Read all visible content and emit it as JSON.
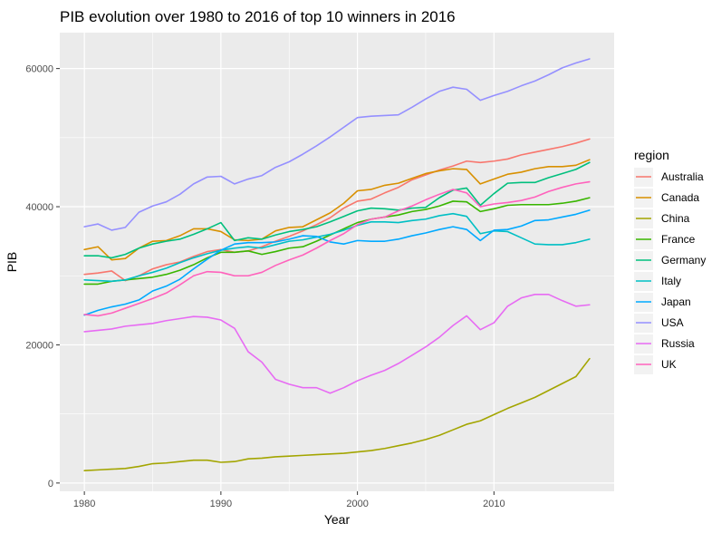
{
  "chart_data": {
    "type": "line",
    "title": "PIB evolution over 1980 to 2016 of top 10 winners in 2016",
    "xlabel": "Year",
    "ylabel": "PIB",
    "xlim": [
      1978.2,
      2018.8
    ],
    "ylim": [
      -1200,
      65200
    ],
    "x_ticks": [
      1980,
      1990,
      2000,
      2010
    ],
    "y_ticks": [
      0,
      20000,
      40000,
      60000
    ],
    "x_tick_labels": [
      "1980",
      "1990",
      "2000",
      "2010"
    ],
    "y_tick_labels": [
      "0",
      "20000",
      "40000",
      "60000"
    ],
    "grid": true,
    "legend": {
      "title": "region",
      "placement": "right"
    },
    "x": [
      1980,
      1981,
      1982,
      1983,
      1984,
      1985,
      1986,
      1987,
      1988,
      1989,
      1990,
      1991,
      1992,
      1993,
      1994,
      1995,
      1996,
      1997,
      1998,
      1999,
      2000,
      2001,
      2002,
      2003,
      2004,
      2005,
      2006,
      2007,
      2008,
      2009,
      2010,
      2011,
      2012,
      2013,
      2014,
      2015,
      2016,
      2017
    ],
    "series": [
      {
        "name": "Australia",
        "color": "#F8766D",
        "values": [
          30200,
          30400,
          30700,
          29300,
          30000,
          31000,
          31600,
          32000,
          32800,
          33500,
          33800,
          33400,
          33600,
          34200,
          35000,
          35700,
          36500,
          37400,
          38400,
          39800,
          40800,
          41100,
          42000,
          42800,
          43900,
          44600,
          45300,
          45900,
          46600,
          46400,
          46600,
          46900,
          47500,
          47900,
          48300,
          48700,
          49200,
          49800
        ]
      },
      {
        "name": "Canada",
        "color": "#D89000",
        "values": [
          33800,
          34200,
          32300,
          32500,
          34000,
          35000,
          35100,
          35800,
          36800,
          36800,
          36400,
          35200,
          35100,
          35300,
          36500,
          37000,
          37100,
          38100,
          39100,
          40500,
          42300,
          42500,
          43100,
          43400,
          44100,
          44800,
          45200,
          45500,
          45400,
          43300,
          44000,
          44700,
          45000,
          45500,
          45800,
          45800,
          46000,
          46800
        ]
      },
      {
        "name": "China",
        "color": "#A3A500",
        "values": [
          1800,
          1900,
          2000,
          2100,
          2400,
          2800,
          2900,
          3100,
          3300,
          3300,
          3000,
          3100,
          3500,
          3600,
          3800,
          3900,
          4000,
          4100,
          4200,
          4300,
          4500,
          4700,
          5000,
          5400,
          5800,
          6300,
          6900,
          7700,
          8500,
          9000,
          9900,
          10800,
          11600,
          12400,
          13400,
          14400,
          15400,
          18000
        ]
      },
      {
        "name": "France",
        "color": "#39B600",
        "values": [
          28800,
          28800,
          29200,
          29400,
          29600,
          29800,
          30200,
          30800,
          31600,
          32600,
          33400,
          33400,
          33600,
          33100,
          33500,
          34000,
          34200,
          35000,
          35900,
          36800,
          37700,
          38200,
          38500,
          38800,
          39300,
          39600,
          40100,
          40800,
          40700,
          39300,
          39700,
          40200,
          40300,
          40300,
          40300,
          40500,
          40800,
          41300
        ]
      },
      {
        "name": "Germany",
        "color": "#00BF7D",
        "values": [
          32900,
          32900,
          32600,
          33100,
          34000,
          34600,
          35000,
          35300,
          36000,
          36800,
          37700,
          35100,
          35500,
          35300,
          35900,
          36400,
          36700,
          37100,
          37800,
          38600,
          39400,
          39800,
          39700,
          39500,
          39800,
          39900,
          41300,
          42400,
          42700,
          40200,
          41900,
          43400,
          43500,
          43500,
          44200,
          44800,
          45400,
          46400
        ]
      },
      {
        "name": "Italy",
        "color": "#00BFC4",
        "values": [
          29400,
          29300,
          29200,
          29400,
          30000,
          30500,
          31100,
          31900,
          32600,
          33200,
          33700,
          34000,
          34200,
          34000,
          34500,
          35000,
          35200,
          35600,
          36000,
          36600,
          37300,
          37800,
          37800,
          37700,
          38000,
          38200,
          38700,
          39000,
          38600,
          36100,
          36500,
          36400,
          35500,
          34600,
          34500,
          34500,
          34800,
          35300
        ]
      },
      {
        "name": "Japan",
        "color": "#00A9FF",
        "values": [
          24300,
          25000,
          25500,
          25900,
          26500,
          27800,
          28500,
          29500,
          31000,
          32400,
          33700,
          34600,
          34800,
          34800,
          34900,
          35300,
          35800,
          35700,
          34900,
          34600,
          35100,
          35000,
          35000,
          35300,
          35800,
          36200,
          36700,
          37100,
          36700,
          35100,
          36600,
          36700,
          37200,
          38000,
          38100,
          38500,
          38900,
          39500
        ]
      },
      {
        "name": "USA",
        "color": "#9590FF",
        "values": [
          37100,
          37500,
          36600,
          37000,
          39200,
          40100,
          40700,
          41800,
          43300,
          44300,
          44400,
          43300,
          44000,
          44500,
          45700,
          46500,
          47600,
          48800,
          50100,
          51500,
          52900,
          53100,
          53200,
          53300,
          54400,
          55600,
          56700,
          57300,
          57000,
          55400,
          56100,
          56700,
          57500,
          58200,
          59100,
          60100,
          60800,
          61400
        ]
      },
      {
        "name": "Russia",
        "color": "#E76BF3",
        "values": [
          21900,
          22100,
          22300,
          22700,
          22900,
          23100,
          23500,
          23800,
          24100,
          24000,
          23600,
          22400,
          19000,
          17500,
          15000,
          14300,
          13800,
          13800,
          13000,
          13800,
          14800,
          15600,
          16300,
          17300,
          18500,
          19700,
          21100,
          22800,
          24200,
          22200,
          23200,
          25600,
          26800,
          27300,
          27300,
          26400,
          25600,
          25800
        ]
      },
      {
        "name": "UK",
        "color": "#FF62BC",
        "values": [
          24400,
          24200,
          24600,
          25300,
          26000,
          26700,
          27500,
          28700,
          30000,
          30600,
          30500,
          30000,
          30000,
          30500,
          31500,
          32300,
          33000,
          34000,
          35100,
          36100,
          37400,
          38200,
          38500,
          39400,
          40100,
          41000,
          41800,
          42500,
          42000,
          40000,
          40400,
          40600,
          40900,
          41400,
          42200,
          42800,
          43300,
          43600
        ]
      }
    ]
  }
}
